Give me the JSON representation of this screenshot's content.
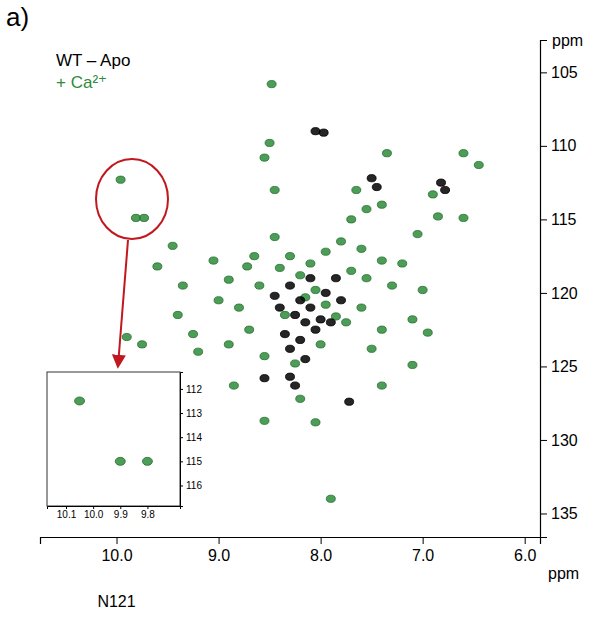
{
  "chart_data": [
    {
      "type": "scatter",
      "panel_label": "a)",
      "x_label": "ppm",
      "y_label": "ppm",
      "annotation": "N121",
      "legend": "top-left",
      "grid": false,
      "marker": "circle",
      "xlim": [
        10.75,
        5.85
      ],
      "ylim": [
        136.6,
        102.8
      ],
      "xticks": [
        {
          "value": 10,
          "label": "10.0"
        },
        {
          "value": 9,
          "label": "9.0"
        },
        {
          "value": 8,
          "label": "8.0"
        },
        {
          "value": 7,
          "label": "7.0"
        },
        {
          "value": 6,
          "label": "6.0"
        }
      ],
      "yticks": [
        105,
        110,
        115,
        120,
        125,
        130,
        135
      ],
      "series": [
        {
          "name": "+ Ca²⁺",
          "color": "#2e8b3a",
          "x": [
            9.96,
            9.81,
            9.73,
            8.48,
            8.55,
            8.45,
            7.55,
            7.7,
            7.35,
            6.45,
            6.6,
            6.9,
            6.85,
            6.6,
            9.45,
            9.35,
            9.05,
            8.9,
            9.0,
            8.72,
            8.8,
            8.7,
            8.65,
            8.45,
            8.6,
            8.4,
            8.3,
            8.2,
            8.1,
            7.95,
            7.8,
            7.6,
            7.55,
            7.4,
            7.3,
            7.2,
            7.05,
            7.0,
            7.1,
            6.95,
            7.4,
            7.6,
            7.75,
            7.5,
            8.0,
            8.25,
            8.55,
            8.9,
            9.2,
            9.75,
            9.9,
            8.2,
            8.05,
            7.9,
            7.4,
            7.1,
            8.85,
            9.4,
            9.25,
            8.35,
            8.15,
            7.95,
            7.85,
            8.05,
            7.7,
            8.55,
            9.6,
            7.65,
            7.4,
            8.5
          ],
          "values": [
            112.3,
            114.9,
            114.9,
            105.8,
            110.8,
            113.0,
            114.3,
            115.0,
            110.5,
            111.3,
            110.5,
            113.3,
            114.8,
            114.9,
            116.8,
            119.5,
            117.8,
            119.1,
            120.5,
            118.2,
            121.0,
            122.5,
            117.5,
            116.2,
            119.5,
            118.3,
            117.5,
            118.8,
            118.0,
            117.2,
            116.5,
            117.0,
            119.0,
            117.8,
            119.5,
            118.0,
            116.0,
            119.8,
            121.8,
            122.7,
            122.5,
            121.0,
            122.0,
            123.8,
            123.5,
            124.8,
            124.3,
            123.5,
            124.0,
            123.5,
            123.0,
            127.2,
            128.8,
            134.0,
            126.3,
            124.9,
            126.3,
            121.5,
            122.8,
            121.5,
            120.3,
            120.8,
            121.6,
            119.8,
            118.5,
            128.7,
            118.2,
            113.0,
            114.0,
            109.8
          ]
        },
        {
          "name": "WT – Apo",
          "color": "#000000",
          "x": [
            8.05,
            7.97,
            7.5,
            7.45,
            6.82,
            6.78,
            8.3,
            8.2,
            8.1,
            8.25,
            8.15,
            8.05,
            8.35,
            8.2,
            7.95,
            8.0,
            8.4,
            8.1,
            7.9,
            8.3,
            8.55,
            8.3,
            8.25,
            7.72,
            8.15,
            7.85,
            7.8,
            8.45
          ],
          "values": [
            109.0,
            109.1,
            112.2,
            112.8,
            112.5,
            113.0,
            119.5,
            120.5,
            121.0,
            121.5,
            122.0,
            122.5,
            122.8,
            123.2,
            120.0,
            121.8,
            121.0,
            119.0,
            122.0,
            123.8,
            125.8,
            125.7,
            126.3,
            127.4,
            124.5,
            119.0,
            120.5,
            120.2
          ]
        }
      ]
    },
    {
      "type": "scatter",
      "grid": false,
      "marker": "circle",
      "xlim": [
        10.17,
        9.68
      ],
      "ylim": [
        116.85,
        111.3
      ],
      "xticks": [
        10.1,
        {
          "value": 10,
          "label": "10.0"
        },
        9.9,
        9.8
      ],
      "yticks": [
        112,
        113,
        114,
        115,
        116
      ],
      "series": [
        {
          "color": "#2e8b3a",
          "x": [
            10.05,
            9.9,
            9.8
          ],
          "values": [
            112.5,
            115.0,
            115.0
          ]
        }
      ]
    }
  ]
}
